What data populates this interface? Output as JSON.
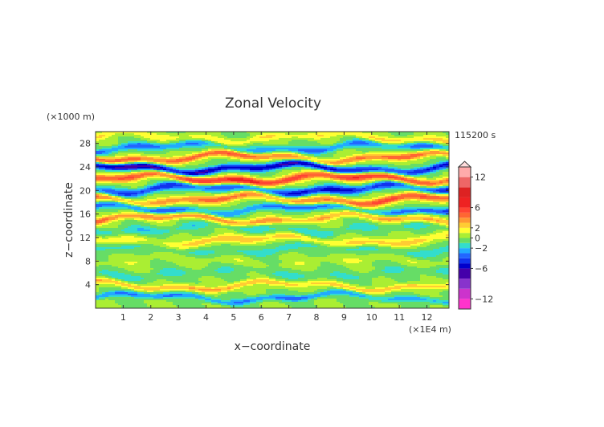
{
  "chart_data": {
    "type": "heatmap",
    "title": "Zonal Velocity",
    "xlabel": "x−coordinate",
    "ylabel": "z−coordinate",
    "x_unit": "(×1E4 m)",
    "y_unit": "(×1000 m)",
    "time_label": "115200 s",
    "xlim": [
      0,
      12.8
    ],
    "ylim": [
      0,
      30
    ],
    "x_ticks": [
      1,
      2,
      3,
      4,
      5,
      6,
      7,
      8,
      9,
      10,
      11,
      12
    ],
    "y_ticks": [
      4,
      8,
      12,
      16,
      20,
      24,
      28
    ],
    "colorbar": {
      "range": [
        -14,
        14
      ],
      "tick_values": [
        12,
        6,
        2,
        0,
        -2,
        -6,
        -12
      ],
      "tick_labels": [
        "12",
        "6",
        "2",
        "0",
        "−2",
        "−6",
        "−12"
      ],
      "levels": [
        -14,
        -12,
        -10,
        -8,
        -6,
        -5,
        -4,
        -3,
        -2,
        -1,
        0,
        1,
        2,
        3,
        4,
        5,
        6,
        8,
        10,
        12,
        14
      ],
      "colors": [
        "#ff33cc",
        "#cc33cc",
        "#8833cc",
        "#4400aa",
        "#0000cc",
        "#1133ee",
        "#2266ff",
        "#22aaff",
        "#33ddcc",
        "#66dd66",
        "#aaee33",
        "#ffff33",
        "#ffcc33",
        "#ff9933",
        "#ff6633",
        "#ff4433",
        "#ee2222",
        "#dd2222",
        "#ee6666",
        "#ffaaaa"
      ]
    },
    "bands": [
      {
        "z": 1.8,
        "amp": -3.0,
        "w": 0.5
      },
      {
        "z": 3.8,
        "amp": 3.0,
        "w": 0.5
      },
      {
        "z": 6.0,
        "amp": -1.2,
        "w": 0.8
      },
      {
        "z": 8.0,
        "amp": 0.8,
        "w": 0.8
      },
      {
        "z": 10.0,
        "amp": -1.5,
        "w": 0.8
      },
      {
        "z": 11.5,
        "amp": 2.5,
        "w": 0.7
      },
      {
        "z": 13.5,
        "amp": -1.5,
        "w": 0.7
      },
      {
        "z": 15.2,
        "amp": 4.0,
        "w": 0.6
      },
      {
        "z": 16.8,
        "amp": -4.0,
        "w": 0.6
      },
      {
        "z": 18.5,
        "amp": 5.0,
        "w": 0.7
      },
      {
        "z": 20.2,
        "amp": -5.0,
        "w": 0.7
      },
      {
        "z": 22.0,
        "amp": 6.0,
        "w": 0.7
      },
      {
        "z": 23.8,
        "amp": -6.5,
        "w": 0.6
      },
      {
        "z": 25.6,
        "amp": 5.0,
        "w": 0.6
      },
      {
        "z": 27.3,
        "amp": -3.5,
        "w": 0.6
      },
      {
        "z": 29.0,
        "amp": 2.0,
        "w": 0.6
      }
    ]
  }
}
